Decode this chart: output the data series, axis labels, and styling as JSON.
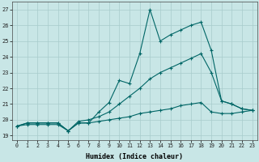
{
  "xlabel": "Humidex (Indice chaleur)",
  "xlim": [
    -0.5,
    23.5
  ],
  "ylim": [
    18.7,
    27.5
  ],
  "yticks": [
    19,
    20,
    21,
    22,
    23,
    24,
    25,
    26,
    27
  ],
  "xticks": [
    0,
    1,
    2,
    3,
    4,
    5,
    6,
    7,
    8,
    9,
    10,
    11,
    12,
    13,
    14,
    15,
    16,
    17,
    18,
    19,
    20,
    21,
    22,
    23
  ],
  "bg_color": "#c8e6e6",
  "grid_color": "#a8cccc",
  "line_color": "#006666",
  "line1_x": [
    0,
    1,
    2,
    3,
    4,
    5,
    6,
    7,
    8,
    9,
    10,
    11,
    12,
    13,
    14,
    15,
    16,
    17,
    18,
    19,
    20,
    21,
    22,
    23
  ],
  "line1_y": [
    19.6,
    19.8,
    19.8,
    19.8,
    19.8,
    19.3,
    19.8,
    19.8,
    20.5,
    21.1,
    22.5,
    22.3,
    24.2,
    27.0,
    25.0,
    25.4,
    25.7,
    26.0,
    26.2,
    24.4,
    21.2,
    21.0,
    20.7,
    20.6
  ],
  "line2_x": [
    0,
    1,
    2,
    3,
    4,
    5,
    6,
    7,
    8,
    9,
    10,
    11,
    12,
    13,
    14,
    15,
    16,
    17,
    18,
    19,
    20,
    21,
    22,
    23
  ],
  "line2_y": [
    19.6,
    19.8,
    19.8,
    19.8,
    19.8,
    19.3,
    19.9,
    20.0,
    20.2,
    20.5,
    21.0,
    21.5,
    22.0,
    22.6,
    23.0,
    23.3,
    23.6,
    23.9,
    24.2,
    23.0,
    21.2,
    21.0,
    20.7,
    20.6
  ],
  "line3_x": [
    0,
    1,
    2,
    3,
    4,
    5,
    6,
    7,
    8,
    9,
    10,
    11,
    12,
    13,
    14,
    15,
    16,
    17,
    18,
    19,
    20,
    21,
    22,
    23
  ],
  "line3_y": [
    19.6,
    19.7,
    19.7,
    19.7,
    19.7,
    19.3,
    19.8,
    19.8,
    19.9,
    20.0,
    20.1,
    20.2,
    20.4,
    20.5,
    20.6,
    20.7,
    20.9,
    21.0,
    21.1,
    20.5,
    20.4,
    20.4,
    20.5,
    20.6
  ]
}
